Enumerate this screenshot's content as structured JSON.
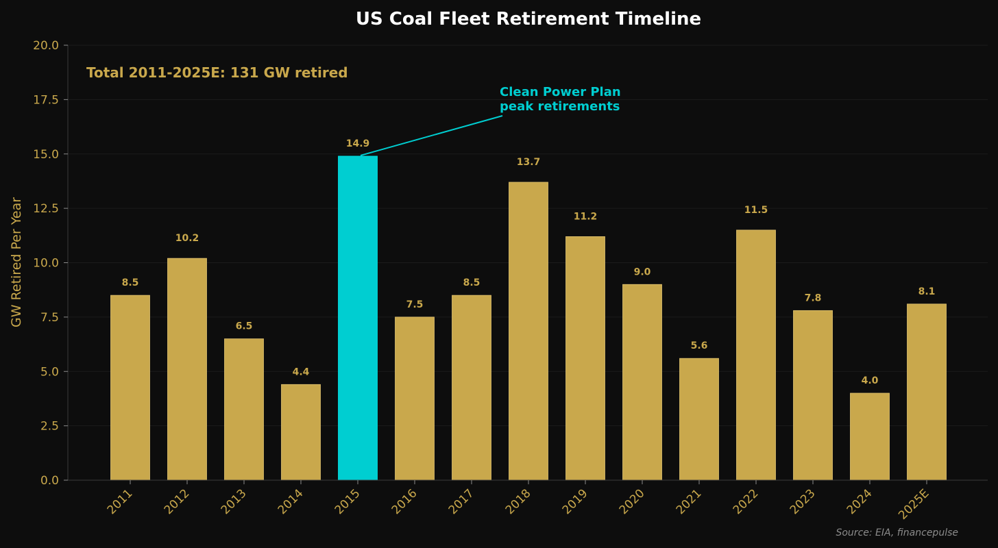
{
  "chart_data": {
    "type": "bar",
    "title": "US Coal Fleet Retirement Timeline",
    "ylabel": "GW Retired Per Year",
    "xlabel": "",
    "ylim": [
      0,
      20
    ],
    "yticks": [
      "0.0",
      "2.5",
      "5.0",
      "7.5",
      "10.0",
      "12.5",
      "15.0",
      "17.5",
      "20.0"
    ],
    "categories": [
      "2011",
      "2012",
      "2013",
      "2014",
      "2015",
      "2016",
      "2017",
      "2018",
      "2019",
      "2020",
      "2021",
      "2022",
      "2023",
      "2024",
      "2025E"
    ],
    "values": [
      8.5,
      10.2,
      6.5,
      4.4,
      14.9,
      7.5,
      8.5,
      13.7,
      11.2,
      9.0,
      5.6,
      11.5,
      7.8,
      4.0,
      8.1
    ],
    "value_labels": [
      "8.5",
      "10.2",
      "6.5",
      "4.4",
      "14.9",
      "7.5",
      "8.5",
      "13.7",
      "11.2",
      "9.0",
      "5.6",
      "11.5",
      "7.8",
      "4.0",
      "8.1"
    ],
    "highlight_index": 4,
    "grid": true,
    "colors": {
      "background": "#0d0d0d",
      "bar": "#c9a84c",
      "highlight": "#00ced1",
      "text": "#c9a84c",
      "title": "#ffffff"
    },
    "annotations": {
      "total": "Total 2011-2025E: 131 GW retired",
      "callout_line1": "Clean Power Plan",
      "callout_line2": "peak retirements",
      "source": "Source: EIA, financepulse"
    }
  }
}
